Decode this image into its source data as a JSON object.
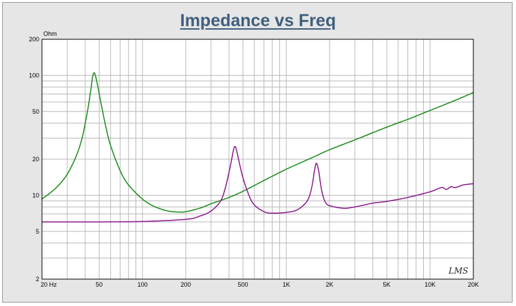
{
  "chart_data": {
    "type": "line",
    "title": "Impedance vs Freq",
    "ylabel": "Ohm",
    "xlabel": "",
    "xscale": "log",
    "yscale": "log",
    "xlim": [
      20,
      20000
    ],
    "ylim": [
      2,
      200
    ],
    "grid": true,
    "x_tick_labels": [
      {
        "v": 20,
        "label": "20  Hz"
      },
      {
        "v": 50,
        "label": "50"
      },
      {
        "v": 100,
        "label": "100"
      },
      {
        "v": 200,
        "label": "200"
      },
      {
        "v": 500,
        "label": "500"
      },
      {
        "v": 1000,
        "label": "1K"
      },
      {
        "v": 2000,
        "label": "2K"
      },
      {
        "v": 5000,
        "label": "5K"
      },
      {
        "v": 10000,
        "label": "10K"
      },
      {
        "v": 20000,
        "label": "20K"
      }
    ],
    "y_tick_labels": [
      {
        "v": 2,
        "label": "2"
      },
      {
        "v": 5,
        "label": "5"
      },
      {
        "v": 10,
        "label": "10"
      },
      {
        "v": 20,
        "label": "20"
      },
      {
        "v": 50,
        "label": "50"
      },
      {
        "v": 100,
        "label": "100"
      },
      {
        "v": 200,
        "label": "200"
      }
    ],
    "series": [
      {
        "color": "#1a8a1a",
        "points": [
          [
            20,
            9.3
          ],
          [
            25,
            11.5
          ],
          [
            30,
            15
          ],
          [
            35,
            22
          ],
          [
            38,
            30
          ],
          [
            40,
            40
          ],
          [
            42,
            55
          ],
          [
            44,
            80
          ],
          [
            45,
            97
          ],
          [
            46,
            105
          ],
          [
            47,
            100
          ],
          [
            49,
            80
          ],
          [
            52,
            55
          ],
          [
            56,
            36
          ],
          [
            60,
            26
          ],
          [
            70,
            16
          ],
          [
            80,
            12.2
          ],
          [
            100,
            9.3
          ],
          [
            120,
            8.1
          ],
          [
            150,
            7.4
          ],
          [
            180,
            7.25
          ],
          [
            200,
            7.3
          ],
          [
            250,
            7.8
          ],
          [
            300,
            8.5
          ],
          [
            400,
            9.6
          ],
          [
            500,
            10.8
          ],
          [
            700,
            13.3
          ],
          [
            1000,
            16.5
          ],
          [
            1500,
            20.5
          ],
          [
            2000,
            24
          ],
          [
            3000,
            29
          ],
          [
            5000,
            37
          ],
          [
            7000,
            43
          ],
          [
            10000,
            51
          ],
          [
            15000,
            62
          ],
          [
            20000,
            72
          ]
        ]
      },
      {
        "color": "#8b1a8b",
        "points": [
          [
            20,
            6.0
          ],
          [
            50,
            6.0
          ],
          [
            100,
            6.05
          ],
          [
            200,
            6.3
          ],
          [
            250,
            6.7
          ],
          [
            300,
            7.4
          ],
          [
            350,
            9.0
          ],
          [
            380,
            12
          ],
          [
            410,
            18
          ],
          [
            430,
            24
          ],
          [
            440,
            25.5
          ],
          [
            450,
            24
          ],
          [
            470,
            19
          ],
          [
            500,
            14
          ],
          [
            550,
            10
          ],
          [
            600,
            8.3
          ],
          [
            700,
            7.3
          ],
          [
            800,
            7.1
          ],
          [
            1000,
            7.2
          ],
          [
            1200,
            7.6
          ],
          [
            1400,
            9
          ],
          [
            1500,
            11.5
          ],
          [
            1570,
            16
          ],
          [
            1620,
            18.5
          ],
          [
            1680,
            16
          ],
          [
            1750,
            11.5
          ],
          [
            1850,
            9
          ],
          [
            2000,
            8.2
          ],
          [
            2500,
            7.8
          ],
          [
            3000,
            8.0
          ],
          [
            4000,
            8.6
          ],
          [
            5000,
            8.9
          ],
          [
            7000,
            9.6
          ],
          [
            10000,
            10.7
          ],
          [
            12000,
            11.6
          ],
          [
            13000,
            11.2
          ],
          [
            14000,
            11.8
          ],
          [
            15000,
            11.6
          ],
          [
            17000,
            12.2
          ],
          [
            20000,
            12.5
          ]
        ]
      }
    ]
  },
  "signature": "LMS"
}
